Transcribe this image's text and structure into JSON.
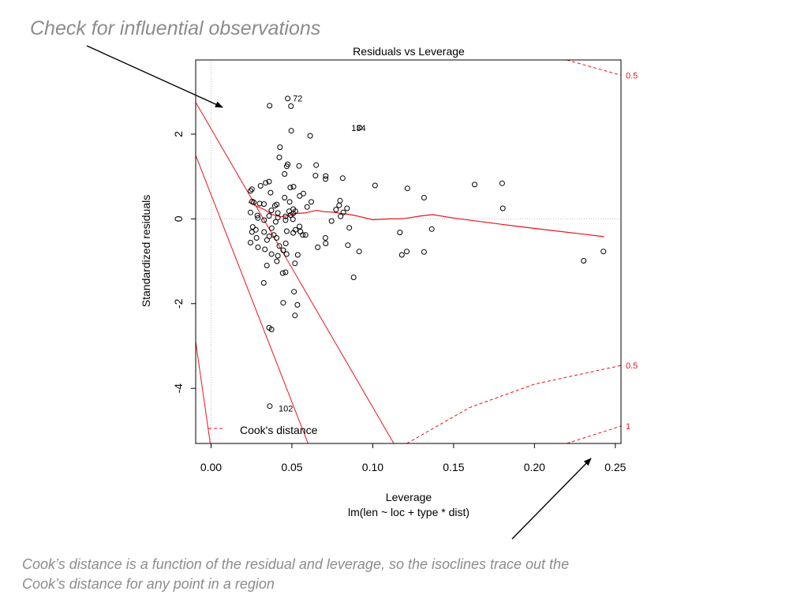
{
  "slide": {
    "heading": "Check for influential observations",
    "caption_line1": "Cook’s distance is a function of the residual and leverage, so the isoclines trace out the",
    "caption_line2": "Cook’s distance for any point in a region"
  },
  "colors": {
    "annotation_text": "#8c8c8c",
    "points": "#000000",
    "smooth_line": "#e8141c",
    "cooks_contours": "#e8141c",
    "reference_lines": "#bdbdbd"
  },
  "chart_data": {
    "type": "scatter",
    "title": "Residuals vs Leverage",
    "xlabel": "Leverage",
    "xlabel_sub": "lm(len ~ loc + type * dist)",
    "ylabel": "Standardized residuals",
    "xlim": [
      -0.0095,
      0.2535
    ],
    "ylim": [
      -5.3,
      3.75
    ],
    "x_ticks": [
      0.0,
      0.05,
      0.1,
      0.15,
      0.2,
      0.25
    ],
    "x_tick_labels": [
      "0.00",
      "0.05",
      "0.10",
      "0.15",
      "0.20",
      "0.25"
    ],
    "y_ticks": [
      -4,
      -2,
      0,
      2
    ],
    "y_tick_labels": [
      "-4",
      "-2",
      "0",
      "2"
    ],
    "legend": {
      "label": "Cook's distance",
      "position": "bottom-left",
      "style": "dashed-red"
    },
    "contour_labels": [
      {
        "text": "0.5",
        "level": 0.5,
        "side": "upper",
        "at_y": 3.39
      },
      {
        "text": "0.5",
        "level": 0.5,
        "side": "lower",
        "at_y": -3.46
      },
      {
        "text": "1",
        "level": 1,
        "side": "lower",
        "at_y": -4.89
      }
    ],
    "point_labels": [
      {
        "text": "72",
        "x": 0.0486,
        "y": 2.85
      },
      {
        "text": "134",
        "x": 0.0848,
        "y": 2.15
      },
      {
        "text": "102",
        "x": 0.0398,
        "y": -4.47
      }
    ],
    "smooth": {
      "x": [
        0.023,
        0.028,
        0.033,
        0.038,
        0.043,
        0.048,
        0.053,
        0.058,
        0.065,
        0.07,
        0.075,
        0.08,
        0.085,
        0.09,
        0.1,
        0.11,
        0.115,
        0.12,
        0.13,
        0.137,
        0.15,
        0.17,
        0.19,
        0.21,
        0.23,
        0.243
      ],
      "y": [
        0.4,
        0.3,
        0.22,
        0.1,
        0.05,
        0.08,
        0.13,
        0.14,
        0.2,
        0.17,
        0.16,
        0.13,
        0.11,
        0.07,
        -0.02,
        0.0,
        0.0,
        0.01,
        0.07,
        0.1,
        0.02,
        -0.08,
        -0.18,
        -0.27,
        -0.36,
        -0.42
      ]
    },
    "points": [
      {
        "x": 0.0362,
        "y": 2.67
      },
      {
        "x": 0.0474,
        "y": 2.84
      },
      {
        "x": 0.0494,
        "y": 2.66
      },
      {
        "x": 0.0919,
        "y": 2.15
      },
      {
        "x": 0.0496,
        "y": 2.08
      },
      {
        "x": 0.0613,
        "y": 1.96
      },
      {
        "x": 0.0426,
        "y": 1.69
      },
      {
        "x": 0.0422,
        "y": 1.45
      },
      {
        "x": 0.0474,
        "y": 1.29
      },
      {
        "x": 0.0468,
        "y": 1.24
      },
      {
        "x": 0.0544,
        "y": 1.25
      },
      {
        "x": 0.065,
        "y": 1.27
      },
      {
        "x": 0.0455,
        "y": 1.06
      },
      {
        "x": 0.0646,
        "y": 1.02
      },
      {
        "x": 0.0709,
        "y": 1.01
      },
      {
        "x": 0.0708,
        "y": 0.94
      },
      {
        "x": 0.0814,
        "y": 0.96
      },
      {
        "x": 0.0338,
        "y": 0.85
      },
      {
        "x": 0.0359,
        "y": 0.88
      },
      {
        "x": 0.0306,
        "y": 0.78
      },
      {
        "x": 0.049,
        "y": 0.74
      },
      {
        "x": 0.051,
        "y": 0.76
      },
      {
        "x": 0.0244,
        "y": 0.66
      },
      {
        "x": 0.0253,
        "y": 0.7
      },
      {
        "x": 0.0368,
        "y": 0.62
      },
      {
        "x": 0.0571,
        "y": 0.6
      },
      {
        "x": 0.0548,
        "y": 0.54
      },
      {
        "x": 0.0455,
        "y": 0.5
      },
      {
        "x": 0.0254,
        "y": 0.41
      },
      {
        "x": 0.0264,
        "y": 0.39
      },
      {
        "x": 0.03,
        "y": 0.36
      },
      {
        "x": 0.0327,
        "y": 0.35
      },
      {
        "x": 0.0395,
        "y": 0.31
      },
      {
        "x": 0.0406,
        "y": 0.34
      },
      {
        "x": 0.0486,
        "y": 0.4
      },
      {
        "x": 0.062,
        "y": 0.4
      },
      {
        "x": 0.0798,
        "y": 0.43
      },
      {
        "x": 0.0792,
        "y": 0.32
      },
      {
        "x": 0.0841,
        "y": 0.25
      },
      {
        "x": 0.0773,
        "y": 0.22
      },
      {
        "x": 0.0818,
        "y": 0.15
      },
      {
        "x": 0.0373,
        "y": 0.2
      },
      {
        "x": 0.0413,
        "y": 0.14
      },
      {
        "x": 0.0483,
        "y": 0.18
      },
      {
        "x": 0.0508,
        "y": 0.23
      },
      {
        "x": 0.0522,
        "y": 0.18
      },
      {
        "x": 0.0594,
        "y": 0.28
      },
      {
        "x": 0.0244,
        "y": 0.15
      },
      {
        "x": 0.0286,
        "y": 0.08
      },
      {
        "x": 0.0359,
        "y": 0.07
      },
      {
        "x": 0.0413,
        "y": 0.03
      },
      {
        "x": 0.0461,
        "y": 0.06
      },
      {
        "x": 0.0492,
        "y": 0.09
      },
      {
        "x": 0.0508,
        "y": 0.13
      },
      {
        "x": 0.029,
        "y": 0.02
      },
      {
        "x": 0.0328,
        "y": -0.03
      },
      {
        "x": 0.04,
        "y": -0.07
      },
      {
        "x": 0.0461,
        "y": -0.03
      },
      {
        "x": 0.0506,
        "y": -0.01
      },
      {
        "x": 0.0745,
        "y": -0.05
      },
      {
        "x": 0.0801,
        "y": 0.06
      },
      {
        "x": 0.0258,
        "y": -0.19
      },
      {
        "x": 0.0253,
        "y": -0.31
      },
      {
        "x": 0.0277,
        "y": -0.26
      },
      {
        "x": 0.0328,
        "y": -0.31
      },
      {
        "x": 0.0375,
        "y": -0.22
      },
      {
        "x": 0.0388,
        "y": -0.38
      },
      {
        "x": 0.0405,
        "y": -0.45
      },
      {
        "x": 0.0468,
        "y": -0.29
      },
      {
        "x": 0.0508,
        "y": -0.33
      },
      {
        "x": 0.0522,
        "y": -0.26
      },
      {
        "x": 0.0553,
        "y": -0.3
      },
      {
        "x": 0.0567,
        "y": -0.38
      },
      {
        "x": 0.0584,
        "y": -0.38
      },
      {
        "x": 0.0547,
        "y": -0.18
      },
      {
        "x": 0.0855,
        "y": -0.21
      },
      {
        "x": 0.0244,
        "y": -0.56
      },
      {
        "x": 0.0281,
        "y": -0.45
      },
      {
        "x": 0.0346,
        "y": -0.5
      },
      {
        "x": 0.036,
        "y": -0.41
      },
      {
        "x": 0.0422,
        "y": -0.64
      },
      {
        "x": 0.0462,
        "y": -0.58
      },
      {
        "x": 0.029,
        "y": -0.67
      },
      {
        "x": 0.0333,
        "y": -0.72
      },
      {
        "x": 0.0374,
        "y": -0.83
      },
      {
        "x": 0.0413,
        "y": -0.87
      },
      {
        "x": 0.0446,
        "y": -0.74
      },
      {
        "x": 0.0467,
        "y": -0.83
      },
      {
        "x": 0.0536,
        "y": -0.85
      },
      {
        "x": 0.066,
        "y": -0.67
      },
      {
        "x": 0.0709,
        "y": -0.58
      },
      {
        "x": 0.0707,
        "y": -0.45
      },
      {
        "x": 0.0846,
        "y": -0.62
      },
      {
        "x": 0.0916,
        "y": -0.77
      },
      {
        "x": 0.0345,
        "y": -1.1
      },
      {
        "x": 0.0407,
        "y": -1.0
      },
      {
        "x": 0.0519,
        "y": -1.05
      },
      {
        "x": 0.0443,
        "y": -1.28
      },
      {
        "x": 0.0461,
        "y": -1.26
      },
      {
        "x": 0.0882,
        "y": -1.38
      },
      {
        "x": 0.0326,
        "y": -1.51
      },
      {
        "x": 0.0513,
        "y": -1.72
      },
      {
        "x": 0.0446,
        "y": -1.98
      },
      {
        "x": 0.0534,
        "y": -2.03
      },
      {
        "x": 0.0519,
        "y": -2.28
      },
      {
        "x": 0.0359,
        "y": -2.57
      },
      {
        "x": 0.0374,
        "y": -2.61
      },
      {
        "x": 0.0363,
        "y": -4.42
      },
      {
        "x": 0.1014,
        "y": 0.79
      },
      {
        "x": 0.1214,
        "y": 0.72
      },
      {
        "x": 0.1317,
        "y": 0.5
      },
      {
        "x": 0.163,
        "y": 0.81
      },
      {
        "x": 0.18,
        "y": 0.84
      },
      {
        "x": 0.1804,
        "y": 0.25
      },
      {
        "x": 0.1168,
        "y": -0.32
      },
      {
        "x": 0.1365,
        "y": -0.24
      },
      {
        "x": 0.118,
        "y": -0.85
      },
      {
        "x": 0.121,
        "y": -0.77
      },
      {
        "x": 0.1317,
        "y": -0.78
      },
      {
        "x": 0.2304,
        "y": -0.99
      },
      {
        "x": 0.2426,
        "y": -0.77
      }
    ]
  }
}
